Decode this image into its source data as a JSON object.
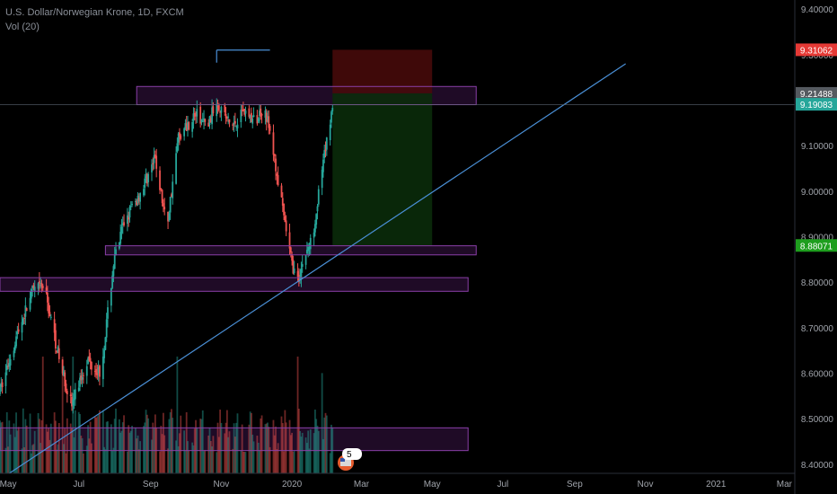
{
  "header": {
    "title": "U.S. Dollar/Norwegian Krone, 1D, FXCM",
    "indicator": "Vol (20)"
  },
  "colors": {
    "background": "#000000",
    "up": "#26a69a",
    "down": "#ef5350",
    "zone_fill": "#2a0f33",
    "zone_stroke": "#8a3fa8",
    "trendline": "#4a8fd6",
    "stop_fill": "#4a0a0a",
    "target_fill": "#0a2e0a",
    "axis_text": "#a0a4ab",
    "current_price_tag": "#26a69a",
    "stop_tag": "#e53935",
    "target_tag": "#1e9e1e",
    "entry_tag": "#555a60"
  },
  "badge": {
    "count": "5"
  },
  "chart_data": {
    "type": "candlestick",
    "title": "U.S. Dollar/Norwegian Krone, 1D, FXCM",
    "price_axis": {
      "ylim": [
        8.38,
        9.42
      ],
      "ticks": [
        "9.40000",
        "9.30000",
        "9.20000",
        "9.10000",
        "9.00000",
        "8.90000",
        "8.80000",
        "8.70000",
        "8.60000",
        "8.50000",
        "8.40000"
      ]
    },
    "time_axis": {
      "xlim": [
        "2019-04-24",
        "2021-03-10"
      ],
      "ticks": [
        {
          "label": "May",
          "date": "2019-05-01"
        },
        {
          "label": "Jul",
          "date": "2019-07-01"
        },
        {
          "label": "Sep",
          "date": "2019-09-01"
        },
        {
          "label": "Nov",
          "date": "2019-11-01"
        },
        {
          "label": "2020",
          "date": "2020-01-01"
        },
        {
          "label": "Mar",
          "date": "2020-03-01"
        },
        {
          "label": "May",
          "date": "2020-05-01"
        },
        {
          "label": "Jul",
          "date": "2020-07-01"
        },
        {
          "label": "Sep",
          "date": "2020-09-01"
        },
        {
          "label": "Nov",
          "date": "2020-11-01"
        },
        {
          "label": "2021",
          "date": "2021-01-01"
        },
        {
          "label": "Mar",
          "date": "2021-03-01"
        }
      ]
    },
    "price_path": [
      [
        "2019-04-24",
        8.56
      ],
      [
        "2019-05-08",
        8.68
      ],
      [
        "2019-05-22",
        8.78
      ],
      [
        "2019-06-01",
        8.79
      ],
      [
        "2019-06-15",
        8.62
      ],
      [
        "2019-06-25",
        8.53
      ],
      [
        "2019-07-08",
        8.63
      ],
      [
        "2019-07-20",
        8.6
      ],
      [
        "2019-07-31",
        8.84
      ],
      [
        "2019-08-10",
        8.94
      ],
      [
        "2019-08-20",
        8.98
      ],
      [
        "2019-09-05",
        9.07
      ],
      [
        "2019-09-15",
        8.92
      ],
      [
        "2019-09-25",
        9.12
      ],
      [
        "2019-10-10",
        9.17
      ],
      [
        "2019-10-20",
        9.14
      ],
      [
        "2019-10-28",
        9.2
      ],
      [
        "2019-11-10",
        9.14
      ],
      [
        "2019-11-20",
        9.18
      ],
      [
        "2019-11-30",
        9.15
      ],
      [
        "2019-12-08",
        9.19
      ],
      [
        "2019-12-15",
        9.1
      ],
      [
        "2019-12-25",
        8.94
      ],
      [
        "2020-01-01",
        8.84
      ],
      [
        "2020-01-06",
        8.8
      ],
      [
        "2020-01-12",
        8.86
      ],
      [
        "2020-01-18",
        8.89
      ],
      [
        "2020-01-25",
        9.01
      ],
      [
        "2020-02-05",
        9.19
      ]
    ],
    "volume_level": 0.45,
    "annotations": {
      "zones": [
        {
          "y_top": 9.23,
          "y_bottom": 9.19,
          "x_start": "2019-08-20",
          "x_end": "2020-06-08"
        },
        {
          "y_top": 8.88,
          "y_bottom": 8.86,
          "x_start": "2019-07-24",
          "x_end": "2020-06-08"
        },
        {
          "y_top": 8.81,
          "y_bottom": 8.78,
          "x_start": "2019-04-24",
          "x_end": "2020-06-01"
        },
        {
          "y_top": 8.48,
          "y_bottom": 8.43,
          "x_start": "2019-04-24",
          "x_end": "2020-06-01"
        }
      ],
      "trendline": {
        "start": [
          "2019-05-02",
          8.38
        ],
        "end": [
          "2020-10-15",
          9.28
        ]
      },
      "top_line": {
        "y": 9.31,
        "x_start": "2019-10-28",
        "x_end": "2019-12-13"
      },
      "entry_line": {
        "y": 9.19
      },
      "short_position": {
        "x_start": "2020-02-05",
        "x_end": "2020-05-01",
        "entry": 9.21488,
        "stop": 9.31062,
        "target": 8.88071
      }
    },
    "price_tags": [
      {
        "label": "9.31062",
        "value": 9.31062,
        "kind": "stop"
      },
      {
        "label": "9.21488",
        "value": 9.21488,
        "kind": "entry"
      },
      {
        "label": "9.19083",
        "value": 9.19083,
        "kind": "current"
      },
      {
        "label": "8.88071",
        "value": 8.88071,
        "kind": "target"
      }
    ]
  }
}
